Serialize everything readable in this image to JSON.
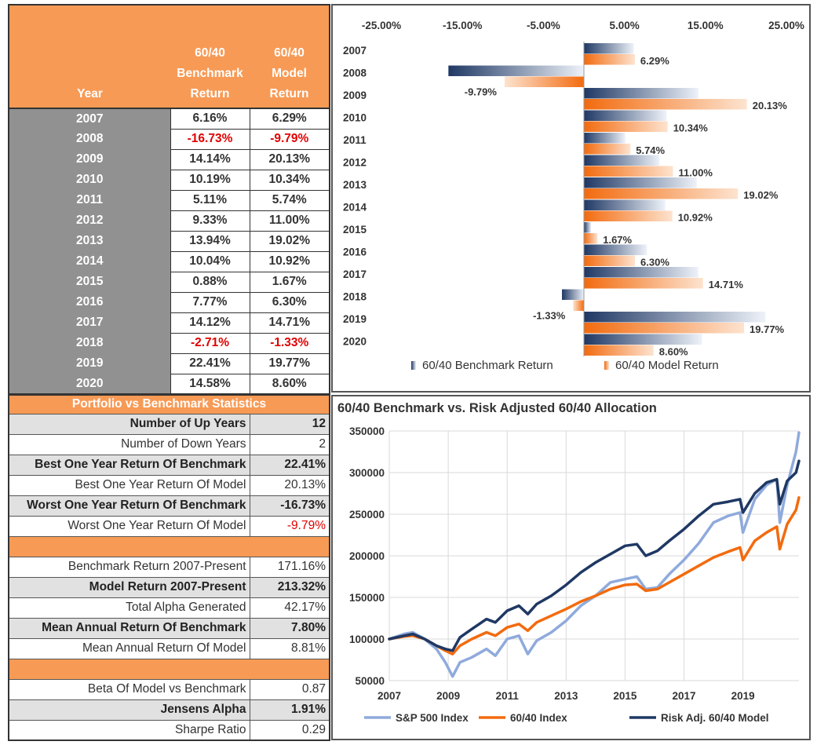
{
  "returns_table": {
    "headers": {
      "year": "Year",
      "benchmark": [
        "60/40",
        "Benchmark",
        "Return"
      ],
      "model": [
        "60/40",
        "Model",
        "Return"
      ]
    },
    "rows": [
      {
        "year": "2007",
        "benchmark": "6.16%",
        "model": "6.29%"
      },
      {
        "year": "2008",
        "benchmark": "-16.73%",
        "model": "-9.79%"
      },
      {
        "year": "2009",
        "benchmark": "14.14%",
        "model": "20.13%"
      },
      {
        "year": "2010",
        "benchmark": "10.19%",
        "model": "10.34%"
      },
      {
        "year": "2011",
        "benchmark": "5.11%",
        "model": "5.74%"
      },
      {
        "year": "2012",
        "benchmark": "9.33%",
        "model": "11.00%"
      },
      {
        "year": "2013",
        "benchmark": "13.94%",
        "model": "19.02%"
      },
      {
        "year": "2014",
        "benchmark": "10.04%",
        "model": "10.92%"
      },
      {
        "year": "2015",
        "benchmark": "0.88%",
        "model": "1.67%"
      },
      {
        "year": "2016",
        "benchmark": "7.77%",
        "model": "6.30%"
      },
      {
        "year": "2017",
        "benchmark": "14.12%",
        "model": "14.71%"
      },
      {
        "year": "2018",
        "benchmark": "-2.71%",
        "model": "-1.33%"
      },
      {
        "year": "2019",
        "benchmark": "22.41%",
        "model": "19.77%"
      },
      {
        "year": "2020",
        "benchmark": "14.58%",
        "model": "8.60%"
      }
    ]
  },
  "stats": {
    "title": "Portfolio vs Benchmark Statistics",
    "rows": [
      {
        "label": "Number of Up Years",
        "value": "12",
        "style": "shade"
      },
      {
        "label": "Number of Down Years",
        "value": "2",
        "style": "plain"
      },
      {
        "label": "Best One Year Return Of Benchmark",
        "value": "22.41%",
        "style": "shade"
      },
      {
        "label": "Best One Year Return Of Model",
        "value": "20.13%",
        "style": "plain"
      },
      {
        "label": "Worst One Year Return Of Benchmark",
        "value": "-16.73%",
        "style": "shade"
      },
      {
        "label": "Worst One Year Return Of Model",
        "value": "-9.79%",
        "style": "plain",
        "negative": true
      },
      {
        "gap": true
      },
      {
        "label": "Benchmark Return 2007-Present",
        "value": "171.16%",
        "style": "plain"
      },
      {
        "label": "Model Return 2007-Present",
        "value": "213.32%",
        "style": "shade"
      },
      {
        "label": "Total Alpha Generated",
        "value": "42.17%",
        "style": "plain"
      },
      {
        "label": "Mean Annual Return Of Benchmark",
        "value": "7.80%",
        "style": "shade"
      },
      {
        "label": "Mean Annual Return Of Model",
        "value": "8.81%",
        "style": "plain"
      },
      {
        "gap": true
      },
      {
        "label": "Beta Of Model vs Benchmark",
        "value": "0.87",
        "style": "plain"
      },
      {
        "label": "Jensens Alpha",
        "value": "1.91%",
        "style": "shade"
      },
      {
        "label": "Sharpe Ratio",
        "value": "0.29",
        "style": "plain"
      }
    ]
  },
  "chart_data": [
    {
      "type": "bar",
      "orientation": "horizontal",
      "categories": [
        "2007",
        "2008",
        "2009",
        "2010",
        "2011",
        "2012",
        "2013",
        "2014",
        "2015",
        "2016",
        "2017",
        "2018",
        "2019",
        "2020"
      ],
      "x_ticks": [
        "-25.00%",
        "-15.00%",
        "-5.00%",
        "5.00%",
        "15.00%",
        "25.00%"
      ],
      "xlim": [
        -25,
        25
      ],
      "series": [
        {
          "name": "60/40 Benchmark Return",
          "color": "#1F3864",
          "values": [
            6.16,
            -16.73,
            14.14,
            10.19,
            5.11,
            9.33,
            13.94,
            10.04,
            0.88,
            7.77,
            14.12,
            -2.71,
            22.41,
            14.58
          ]
        },
        {
          "name": "60/40 Model Return",
          "color": "#F26B0F",
          "values": [
            6.29,
            -9.79,
            20.13,
            10.34,
            5.74,
            11.0,
            19.02,
            10.92,
            1.67,
            6.3,
            14.71,
            -1.33,
            19.77,
            8.6
          ],
          "data_labels": [
            "6.29%",
            "-9.79%",
            "20.13%",
            "10.34%",
            "5.74%",
            "11.00%",
            "19.02%",
            "10.92%",
            "1.67%",
            "6.30%",
            "14.71%",
            "-1.33%",
            "19.77%",
            "8.60%"
          ]
        }
      ],
      "legend": "bottom"
    },
    {
      "type": "line",
      "title": "60/40 Benchmark vs. Risk Adjusted 60/40 Allocation",
      "x_ticks": [
        "2007",
        "2009",
        "2011",
        "2013",
        "2015",
        "2017",
        "2019"
      ],
      "y_ticks": [
        "50000",
        "100000",
        "150000",
        "200000",
        "250000",
        "300000",
        "350000"
      ],
      "xlim": [
        2007,
        2020.9
      ],
      "ylim": [
        50000,
        350000
      ],
      "grid": true,
      "legend": "bottom",
      "series": [
        {
          "name": "S&P 500 Index",
          "color": "#8FAADC",
          "x": [
            2007,
            2007.5,
            2007.8,
            2008.2,
            2008.6,
            2008.9,
            2009.15,
            2009.4,
            2009.8,
            2010.3,
            2010.6,
            2011.0,
            2011.4,
            2011.7,
            2012.0,
            2012.5,
            2013.0,
            2013.5,
            2014.0,
            2014.5,
            2015.0,
            2015.4,
            2015.7,
            2016.1,
            2016.5,
            2017.0,
            2017.5,
            2018.0,
            2018.5,
            2018.9,
            2019.0,
            2019.4,
            2019.8,
            2020.15,
            2020.25,
            2020.5,
            2020.8,
            2020.9
          ],
          "y": [
            100000,
            106000,
            108000,
            100000,
            88000,
            72000,
            55000,
            72000,
            78000,
            88000,
            80000,
            100000,
            104000,
            82000,
            98000,
            108000,
            122000,
            140000,
            152000,
            168000,
            172000,
            175000,
            160000,
            162000,
            178000,
            195000,
            215000,
            240000,
            248000,
            252000,
            228000,
            268000,
            285000,
            292000,
            240000,
            285000,
            325000,
            348000
          ]
        },
        {
          "name": "60/40 Index",
          "color": "#F26B0F",
          "x": [
            2007,
            2007.5,
            2007.8,
            2008.2,
            2008.6,
            2008.9,
            2009.15,
            2009.4,
            2009.8,
            2010.3,
            2010.6,
            2011.0,
            2011.4,
            2011.7,
            2012.0,
            2012.5,
            2013.0,
            2013.5,
            2014.0,
            2014.5,
            2015.0,
            2015.4,
            2015.7,
            2016.1,
            2016.5,
            2017.0,
            2017.5,
            2018.0,
            2018.5,
            2018.9,
            2019.0,
            2019.4,
            2019.8,
            2020.15,
            2020.25,
            2020.5,
            2020.8,
            2020.9
          ],
          "y": [
            100000,
            103000,
            104000,
            100000,
            92000,
            86000,
            82000,
            92000,
            100000,
            108000,
            104000,
            114000,
            118000,
            110000,
            120000,
            128000,
            136000,
            145000,
            152000,
            160000,
            165000,
            166000,
            158000,
            160000,
            168000,
            178000,
            188000,
            198000,
            205000,
            210000,
            195000,
            218000,
            228000,
            235000,
            208000,
            238000,
            255000,
            270000
          ]
        },
        {
          "name": "Risk Adj. 60/40 Model",
          "color": "#1F3864",
          "x": [
            2007,
            2007.5,
            2007.8,
            2008.2,
            2008.6,
            2008.9,
            2009.15,
            2009.4,
            2009.8,
            2010.3,
            2010.6,
            2011.0,
            2011.4,
            2011.7,
            2012.0,
            2012.5,
            2013.0,
            2013.5,
            2014.0,
            2014.5,
            2015.0,
            2015.4,
            2015.7,
            2016.1,
            2016.5,
            2017.0,
            2017.5,
            2018.0,
            2018.5,
            2018.9,
            2019.0,
            2019.4,
            2019.8,
            2020.15,
            2020.25,
            2020.5,
            2020.8,
            2020.9
          ],
          "y": [
            100000,
            104000,
            106000,
            100000,
            92000,
            88000,
            86000,
            102000,
            112000,
            124000,
            120000,
            134000,
            140000,
            130000,
            142000,
            152000,
            165000,
            180000,
            192000,
            202000,
            212000,
            214000,
            200000,
            206000,
            218000,
            232000,
            248000,
            262000,
            265000,
            268000,
            252000,
            275000,
            288000,
            292000,
            262000,
            290000,
            300000,
            314000
          ]
        }
      ]
    }
  ]
}
